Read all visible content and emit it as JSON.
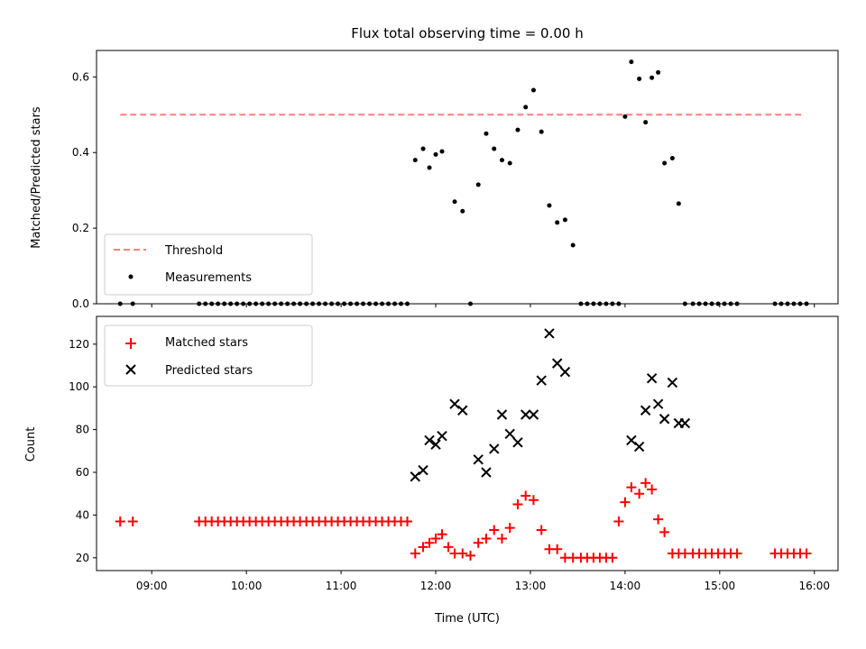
{
  "chart_data": [
    {
      "type": "scatter",
      "title": "Flux total observing time = 0.00 h",
      "xlabel": "",
      "ylabel": "Matched/Predicted stars",
      "xlim": [
        "08:25",
        "16:15"
      ],
      "ylim": [
        0,
        0.67
      ],
      "yticks": [
        0.0,
        0.2,
        0.4,
        0.6
      ],
      "ytick_labels": [
        "0.0",
        "0.2",
        "0.4",
        "0.6"
      ],
      "legend_placement": "lower-left",
      "series": [
        {
          "name": "Threshold",
          "kind": "dashed-line",
          "color": "#ff7f7f",
          "x": [
            "08:40",
            "15:53"
          ],
          "y": [
            0.5,
            0.5
          ]
        },
        {
          "name": "Measurements",
          "kind": "dots",
          "color": "#000000",
          "x": [
            "08:40",
            "08:48",
            "09:30",
            "09:34",
            "09:38",
            "09:42",
            "09:46",
            "09:50",
            "09:54",
            "09:58",
            "10:02",
            "10:06",
            "10:10",
            "10:14",
            "10:18",
            "10:22",
            "10:26",
            "10:30",
            "10:34",
            "10:38",
            "10:42",
            "10:46",
            "10:50",
            "10:54",
            "10:58",
            "11:02",
            "11:06",
            "11:10",
            "11:14",
            "11:18",
            "11:22",
            "11:26",
            "11:30",
            "11:34",
            "11:38",
            "11:42",
            "11:47",
            "11:52",
            "11:56",
            "12:00",
            "12:04",
            "12:12",
            "12:17",
            "12:22",
            "12:27",
            "12:32",
            "12:37",
            "12:42",
            "12:47",
            "12:52",
            "12:57",
            "13:02",
            "13:07",
            "13:12",
            "13:17",
            "13:22",
            "13:27",
            "13:32",
            "13:36",
            "13:40",
            "13:44",
            "13:48",
            "13:52",
            "13:56",
            "14:00",
            "14:04",
            "14:09",
            "14:13",
            "14:17",
            "14:21",
            "14:25",
            "14:30",
            "14:34",
            "14:38",
            "14:43",
            "14:47",
            "14:51",
            "14:55",
            "14:59",
            "15:03",
            "15:07",
            "15:11",
            "15:35",
            "15:39",
            "15:43",
            "15:47",
            "15:51",
            "15:55"
          ],
          "y": [
            0,
            0,
            0,
            0,
            0,
            0,
            0,
            0,
            0,
            0,
            0,
            0,
            0,
            0,
            0,
            0,
            0,
            0,
            0,
            0,
            0,
            0,
            0,
            0,
            0,
            0,
            0,
            0,
            0,
            0,
            0,
            0,
            0,
            0,
            0,
            0,
            0.38,
            0.41,
            0.36,
            0.395,
            0.403,
            0.27,
            0.245,
            0,
            0.315,
            0.45,
            0.41,
            0.38,
            0.372,
            0.46,
            0.52,
            0.565,
            0.455,
            0.26,
            0.215,
            0.222,
            0.155,
            0,
            0,
            0,
            0,
            0,
            0,
            0,
            0.495,
            0.64,
            0.595,
            0.48,
            0.598,
            0.612,
            0.372,
            0.385,
            0.265,
            0,
            0,
            0,
            0,
            0,
            0,
            0,
            0,
            0,
            0,
            0,
            0,
            0,
            0,
            0
          ]
        }
      ]
    },
    {
      "type": "scatter",
      "title": "",
      "xlabel": "Time (UTC)",
      "ylabel": "Count",
      "xlim": [
        "08:25",
        "16:15"
      ],
      "xticks": [
        "09:00",
        "10:00",
        "11:00",
        "12:00",
        "13:00",
        "14:00",
        "15:00",
        "16:00"
      ],
      "ylim": [
        14,
        133
      ],
      "yticks": [
        20,
        40,
        60,
        80,
        100,
        120
      ],
      "ytick_labels": [
        "20",
        "40",
        "60",
        "80",
        "100",
        "120"
      ],
      "legend_placement": "upper-left",
      "series": [
        {
          "name": "Matched stars",
          "marker": "+",
          "color": "#ff0000",
          "x": [
            "08:40",
            "08:48",
            "09:30",
            "09:34",
            "09:38",
            "09:42",
            "09:46",
            "09:50",
            "09:54",
            "09:58",
            "10:02",
            "10:06",
            "10:10",
            "10:14",
            "10:18",
            "10:22",
            "10:26",
            "10:30",
            "10:34",
            "10:38",
            "10:42",
            "10:46",
            "10:50",
            "10:54",
            "10:58",
            "11:02",
            "11:06",
            "11:10",
            "11:14",
            "11:18",
            "11:22",
            "11:26",
            "11:30",
            "11:34",
            "11:38",
            "11:42",
            "11:47",
            "11:52",
            "11:56",
            "12:00",
            "12:04",
            "12:08",
            "12:12",
            "12:17",
            "12:22",
            "12:27",
            "12:32",
            "12:37",
            "12:42",
            "12:47",
            "12:52",
            "12:57",
            "13:02",
            "13:07",
            "13:12",
            "13:17",
            "13:22",
            "13:27",
            "13:32",
            "13:36",
            "13:40",
            "13:44",
            "13:48",
            "13:52",
            "13:56",
            "14:00",
            "14:04",
            "14:09",
            "14:13",
            "14:17",
            "14:21",
            "14:25",
            "14:30",
            "14:34",
            "14:38",
            "14:43",
            "14:47",
            "14:51",
            "14:55",
            "14:59",
            "15:03",
            "15:07",
            "15:11",
            "15:35",
            "15:39",
            "15:43",
            "15:47",
            "15:51",
            "15:55"
          ],
          "y": [
            37,
            37,
            37,
            37,
            37,
            37,
            37,
            37,
            37,
            37,
            37,
            37,
            37,
            37,
            37,
            37,
            37,
            37,
            37,
            37,
            37,
            37,
            37,
            37,
            37,
            37,
            37,
            37,
            37,
            37,
            37,
            37,
            37,
            37,
            37,
            37,
            22,
            25,
            27,
            29,
            31,
            25,
            22,
            22,
            21,
            27,
            29,
            33,
            29,
            34,
            45,
            49,
            47,
            33,
            24,
            24,
            20,
            20,
            20,
            20,
            20,
            20,
            20,
            20,
            37,
            46,
            53,
            50,
            55,
            52,
            38,
            32,
            22,
            22,
            22,
            22,
            22,
            22,
            22,
            22,
            22,
            22,
            22,
            22,
            22,
            22,
            22,
            22,
            22
          ]
        },
        {
          "name": "Predicted stars",
          "marker": "x",
          "color": "#000000",
          "x": [
            "11:47",
            "11:52",
            "11:56",
            "12:00",
            "12:04",
            "12:12",
            "12:17",
            "12:27",
            "12:32",
            "12:37",
            "12:42",
            "12:47",
            "12:52",
            "12:57",
            "13:02",
            "13:07",
            "13:12",
            "13:17",
            "13:22",
            "14:04",
            "14:09",
            "14:13",
            "14:17",
            "14:21",
            "14:25",
            "14:30",
            "14:34",
            "14:38"
          ],
          "y": [
            58,
            61,
            75,
            73,
            77,
            92,
            89,
            66,
            60,
            71,
            87,
            78,
            74,
            87,
            87,
            103,
            125,
            111,
            107,
            75,
            72,
            89,
            104,
            92,
            85,
            102,
            83,
            83
          ]
        }
      ]
    }
  ]
}
